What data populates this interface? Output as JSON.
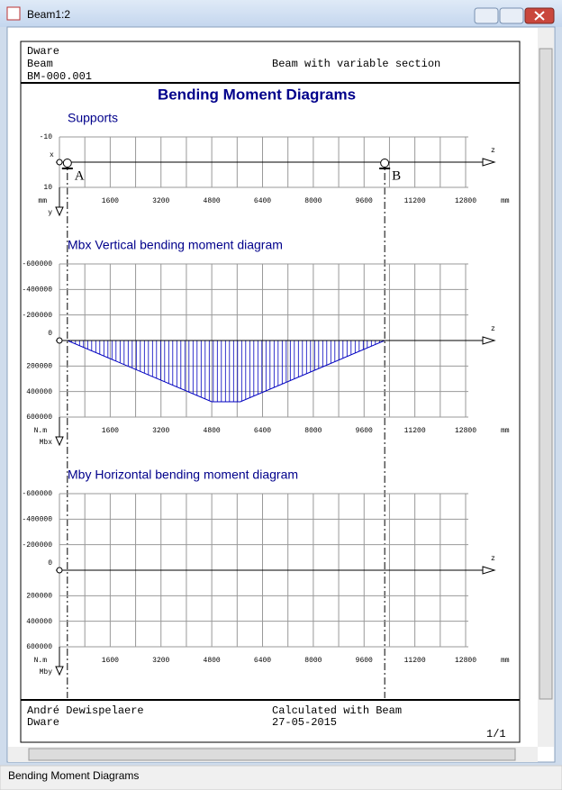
{
  "window": {
    "title": "Beam1:2",
    "status": "Bending Moment Diagrams"
  },
  "header": {
    "company": "Dware",
    "program": "Beam",
    "reference": "BM-000.001",
    "description": "Beam with variable section"
  },
  "page_title": "Bending Moment Diagrams",
  "chart_data": [
    {
      "type": "supports",
      "title": "Supports",
      "xlim": [
        0,
        12800
      ],
      "xticks": [
        1600,
        3200,
        4800,
        6400,
        8000,
        9600,
        11200,
        12800
      ],
      "ylim": [
        -10,
        10
      ],
      "yticks": [
        -10,
        10
      ],
      "y_downward": true,
      "x_unit": "mm",
      "x_axis_label": "z",
      "origin_label": "x",
      "y_unit": "mm",
      "y_axis_label": "y",
      "supports": [
        {
          "label": "A",
          "z": 250
        },
        {
          "label": "B",
          "z": 10250
        }
      ]
    },
    {
      "type": "moment",
      "title": "Mbx Vertical bending moment diagram",
      "xlim": [
        0,
        12800
      ],
      "xticks": [
        1600,
        3200,
        4800,
        6400,
        8000,
        9600,
        11200,
        12800
      ],
      "ylim": [
        -600000,
        600000
      ],
      "yticks": [
        -600000,
        -400000,
        -200000,
        0,
        200000,
        400000,
        600000
      ],
      "y_downward": true,
      "x_unit": "mm",
      "x_axis_label": "z",
      "y_unit": "N.m",
      "y_axis_label": "Mbx",
      "color": "#0000c0",
      "z": [
        250,
        4800,
        5700,
        10250
      ],
      "values": [
        0,
        480000,
        480000,
        0
      ]
    },
    {
      "type": "moment",
      "title": "Mby Horizontal bending moment diagram",
      "xlim": [
        0,
        12800
      ],
      "xticks": [
        1600,
        3200,
        4800,
        6400,
        8000,
        9600,
        11200,
        12800
      ],
      "ylim": [
        -600000,
        600000
      ],
      "yticks": [
        -600000,
        -400000,
        -200000,
        0,
        200000,
        400000,
        600000
      ],
      "y_downward": true,
      "x_unit": "mm",
      "x_axis_label": "z",
      "y_unit": "N.m",
      "y_axis_label": "Mby",
      "color": "#0000c0",
      "z": [
        250,
        10250
      ],
      "values": [
        0,
        0
      ]
    }
  ],
  "footer": {
    "author": "André Dewispelaere",
    "company": "Dware",
    "note": "Calculated with Beam",
    "date": "27-05-2015",
    "page": "1/1"
  }
}
